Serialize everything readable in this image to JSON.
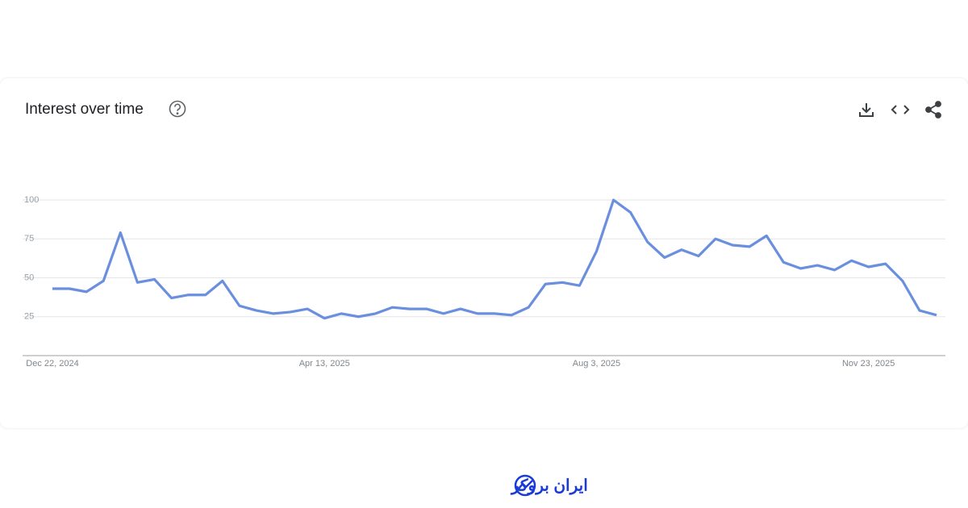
{
  "chart_data": {
    "type": "line",
    "title": "Interest over time",
    "categories": [
      "Dec 22, 2024",
      null,
      null,
      null,
      null,
      null,
      null,
      null,
      null,
      null,
      null,
      null,
      null,
      null,
      null,
      null,
      "Apr 13, 2025",
      null,
      null,
      null,
      null,
      null,
      null,
      null,
      null,
      null,
      null,
      null,
      null,
      null,
      null,
      null,
      "Aug 3, 2025",
      null,
      null,
      null,
      null,
      null,
      null,
      null,
      null,
      null,
      null,
      null,
      null,
      null,
      null,
      null,
      "Nov 23, 2025",
      null,
      null,
      null,
      null
    ],
    "series": [
      {
        "color": "#6a8fdf",
        "values": [
          43,
          43,
          41,
          48,
          79,
          47,
          49,
          37,
          39,
          39,
          48,
          32,
          29,
          27,
          28,
          30,
          24,
          27,
          25,
          27,
          31,
          30,
          30,
          27,
          30,
          27,
          27,
          26,
          31,
          46,
          47,
          45,
          67,
          100,
          92,
          73,
          63,
          68,
          64,
          75,
          71,
          70,
          77,
          60,
          56,
          58,
          55,
          61,
          57,
          59,
          48,
          29,
          26
        ]
      }
    ],
    "ylim": [
      0,
      100
    ],
    "yticks": [
      25,
      50,
      75,
      100
    ],
    "grid": true
  },
  "footer": {
    "brand": "ایران بروکر"
  }
}
